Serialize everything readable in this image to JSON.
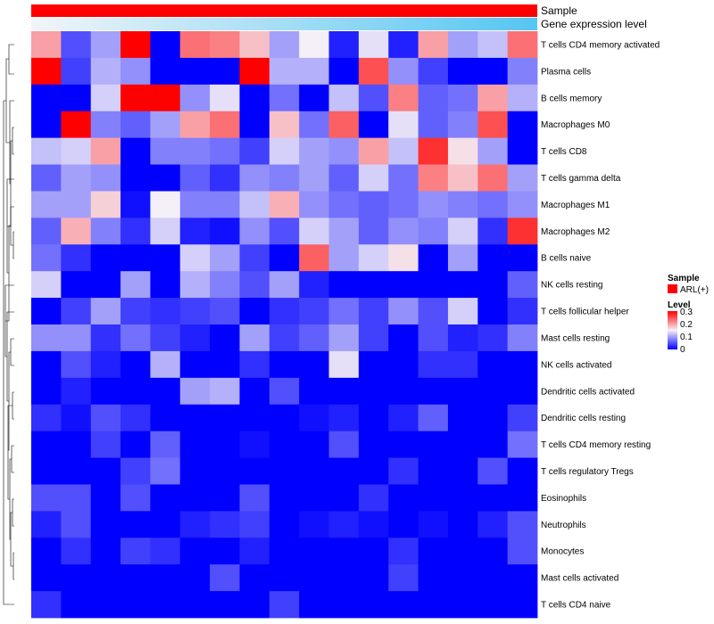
{
  "chart_data": {
    "type": "heatmap",
    "title": "",
    "annotation_tracks": [
      {
        "name": "Sample",
        "colors_by": "single category",
        "category": "ARL(+)",
        "color": "#ff0000"
      },
      {
        "name": "Gene expression level",
        "gradient": [
          "#f2f5f8",
          "#55c6f2"
        ]
      }
    ],
    "rows": [
      "T cells CD4 memory activated",
      "Plasma cells",
      "B cells memory",
      "Macrophages M0",
      "T cells CD8",
      "T cells gamma delta",
      "Macrophages M1",
      "Macrophages M2",
      "B cells naive",
      "NK cells resting",
      "T cells follicular helper",
      "Mast cells resting",
      "NK cells activated",
      "Dendritic cells activated",
      "Dendritic cells resting",
      "T cells CD4 memory resting",
      "T cells regulatory  Tregs",
      "Eosinophils",
      "Neutrophils",
      "Monocytes",
      "Mast cells activated",
      "T cells CD4 naive"
    ],
    "values": [
      [
        0.2,
        0.05,
        0.1,
        0.3,
        0.0,
        0.23,
        0.22,
        0.18,
        0.1,
        0.15,
        0.02,
        0.14,
        0.02,
        0.2,
        0.1,
        0.12,
        0.23
      ],
      [
        0.3,
        0.04,
        0.11,
        0.09,
        0.0,
        0.0,
        0.0,
        0.3,
        0.11,
        0.11,
        0.0,
        0.25,
        0.09,
        0.04,
        0.0,
        0.0,
        0.08
      ],
      [
        0.0,
        0.0,
        0.13,
        0.3,
        0.3,
        0.09,
        0.14,
        0.0,
        0.07,
        0.0,
        0.12,
        0.05,
        0.22,
        0.06,
        0.07,
        0.2,
        0.11
      ],
      [
        0.0,
        0.3,
        0.08,
        0.06,
        0.1,
        0.2,
        0.23,
        0.0,
        0.18,
        0.07,
        0.24,
        0.0,
        0.14,
        0.06,
        0.08,
        0.25,
        0.0
      ],
      [
        0.12,
        0.13,
        0.2,
        0.0,
        0.08,
        0.08,
        0.07,
        0.04,
        0.13,
        0.1,
        0.09,
        0.2,
        0.12,
        0.27,
        0.16,
        0.1,
        0.0
      ],
      [
        0.06,
        0.1,
        0.09,
        0.0,
        0.0,
        0.06,
        0.03,
        0.09,
        0.08,
        0.1,
        0.06,
        0.13,
        0.07,
        0.22,
        0.18,
        0.23,
        0.1
      ],
      [
        0.1,
        0.1,
        0.17,
        0.01,
        0.15,
        0.08,
        0.08,
        0.12,
        0.19,
        0.09,
        0.07,
        0.06,
        0.07,
        0.09,
        0.08,
        0.07,
        0.09
      ],
      [
        0.06,
        0.19,
        0.08,
        0.03,
        0.13,
        0.02,
        0.01,
        0.09,
        0.05,
        0.13,
        0.1,
        0.06,
        0.09,
        0.08,
        0.13,
        0.03,
        0.27
      ],
      [
        0.07,
        0.03,
        0.0,
        0.0,
        0.0,
        0.13,
        0.1,
        0.04,
        0.0,
        0.24,
        0.1,
        0.13,
        0.16,
        0.0,
        0.1,
        0.0,
        0.0
      ],
      [
        0.13,
        0.0,
        0.0,
        0.1,
        0.0,
        0.11,
        0.08,
        0.05,
        0.1,
        0.02,
        0.0,
        0.0,
        0.0,
        0.0,
        0.0,
        0.0,
        0.06
      ],
      [
        0.0,
        0.04,
        0.1,
        0.04,
        0.03,
        0.04,
        0.05,
        0.0,
        0.03,
        0.04,
        0.07,
        0.04,
        0.09,
        0.05,
        0.13,
        0.0,
        0.03
      ],
      [
        0.09,
        0.09,
        0.03,
        0.07,
        0.04,
        0.02,
        0.0,
        0.1,
        0.04,
        0.06,
        0.1,
        0.04,
        0.0,
        0.05,
        0.02,
        0.03,
        0.08
      ],
      [
        0.0,
        0.05,
        0.02,
        0.0,
        0.11,
        0.0,
        0.0,
        0.03,
        0.0,
        0.0,
        0.14,
        0.0,
        0.0,
        0.03,
        0.03,
        0.0,
        0.0
      ],
      [
        0.0,
        0.02,
        0.0,
        0.0,
        0.0,
        0.1,
        0.11,
        0.0,
        0.05,
        0.0,
        0.0,
        0.0,
        0.0,
        0.0,
        0.0,
        0.0,
        0.0
      ],
      [
        0.03,
        0.01,
        0.05,
        0.03,
        0.0,
        0.0,
        0.0,
        0.0,
        0.0,
        0.01,
        0.02,
        0.0,
        0.02,
        0.06,
        0.0,
        0.0,
        0.04
      ],
      [
        0.0,
        0.0,
        0.04,
        0.0,
        0.06,
        0.0,
        0.0,
        0.01,
        0.0,
        0.0,
        0.05,
        0.0,
        0.0,
        0.0,
        0.0,
        0.0,
        0.07
      ],
      [
        0.0,
        0.0,
        0.0,
        0.04,
        0.07,
        0.0,
        0.0,
        0.0,
        0.0,
        0.0,
        0.0,
        0.0,
        0.03,
        0.0,
        0.0,
        0.05,
        0.0
      ],
      [
        0.05,
        0.05,
        0.0,
        0.05,
        0.0,
        0.0,
        0.0,
        0.05,
        0.0,
        0.0,
        0.0,
        0.03,
        0.0,
        0.0,
        0.0,
        0.0,
        0.0
      ],
      [
        0.02,
        0.05,
        0.0,
        0.0,
        0.0,
        0.02,
        0.03,
        0.04,
        0.0,
        0.01,
        0.02,
        0.01,
        0.0,
        0.01,
        0.0,
        0.02,
        0.05
      ],
      [
        0.0,
        0.03,
        0.0,
        0.04,
        0.03,
        0.0,
        0.0,
        0.02,
        0.0,
        0.0,
        0.0,
        0.0,
        0.03,
        0.0,
        0.0,
        0.0,
        0.05
      ],
      [
        0.0,
        0.0,
        0.0,
        0.0,
        0.0,
        0.0,
        0.05,
        0.0,
        0.0,
        0.0,
        0.0,
        0.0,
        0.04,
        0.0,
        0.0,
        0.0,
        0.0
      ],
      [
        0.03,
        0.0,
        0.0,
        0.0,
        0.0,
        0.0,
        0.0,
        0.0,
        0.04,
        0.0,
        0.0,
        0.0,
        0.0,
        0.0,
        0.0,
        0.0,
        0.0
      ]
    ],
    "color_scale": {
      "min": 0,
      "mid": 0.15,
      "max": 0.3,
      "low": "#0000ff",
      "midcolor": "#f5f0f8",
      "high": "#ff0000"
    },
    "legend": {
      "placement": "right",
      "sample_title": "Sample",
      "sample_label": "ARL(+)",
      "level_title": "Level",
      "ticks": [
        "0.3",
        "0.2",
        "0.1",
        "0"
      ]
    }
  }
}
